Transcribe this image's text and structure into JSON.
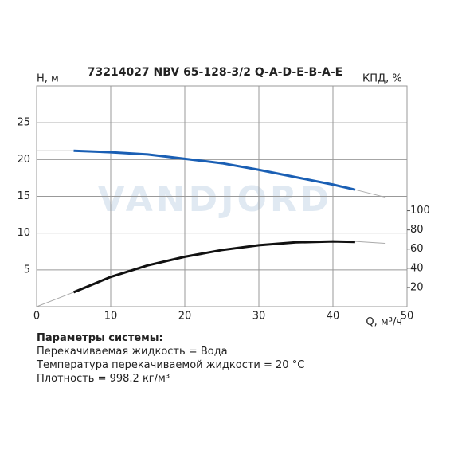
{
  "chart_data": {
    "type": "line",
    "title": "73214027 NBV 65-128-3/2 Q-A-D-E-B-A-E",
    "watermark": "VANDJORD",
    "y_label": "H, м",
    "y2_label": "КПД, %",
    "x_label": "Q, м³/ч",
    "x": [
      0,
      5,
      10,
      15,
      20,
      25,
      30,
      35,
      40,
      43,
      47
    ],
    "series": [
      {
        "color": "#aaaaaa",
        "values": [
          21.2,
          21.2,
          21.0,
          20.7,
          20.1,
          19.5,
          18.6,
          17.6,
          16.6,
          15.9,
          14.9
        ]
      },
      {
        "color": "#1a5fb4",
        "values": [
          null,
          21.2,
          21.0,
          20.7,
          20.1,
          19.5,
          18.6,
          17.6,
          16.6,
          15.9,
          null
        ]
      },
      {
        "color": "#aaaaaa",
        "axis": "y2",
        "values": [
          0,
          15,
          31,
          43,
          52,
          59,
          64,
          67,
          68,
          68,
          66
        ]
      },
      {
        "color": "#111111",
        "axis": "y2",
        "values": [
          null,
          15,
          31,
          43,
          52,
          59,
          64,
          67,
          68,
          67.5,
          null
        ]
      }
    ],
    "xlim": [
      0,
      50
    ],
    "xticks": [
      0,
      10,
      20,
      30,
      40,
      50
    ],
    "ylim": [
      0,
      30
    ],
    "yticks": [
      5,
      10,
      15,
      20,
      25
    ],
    "y2lim": [
      0,
      230
    ],
    "y2ticks": [
      20,
      40,
      60,
      80,
      100
    ],
    "grid": true
  },
  "notes": {
    "heading": "Параметры системы:",
    "lines": [
      "Перекачиваемая жидкость = Вода",
      "Температура перекачиваемой жидкости = 20 °C",
      "Плотность = 998.2 кг/м³"
    ]
  }
}
